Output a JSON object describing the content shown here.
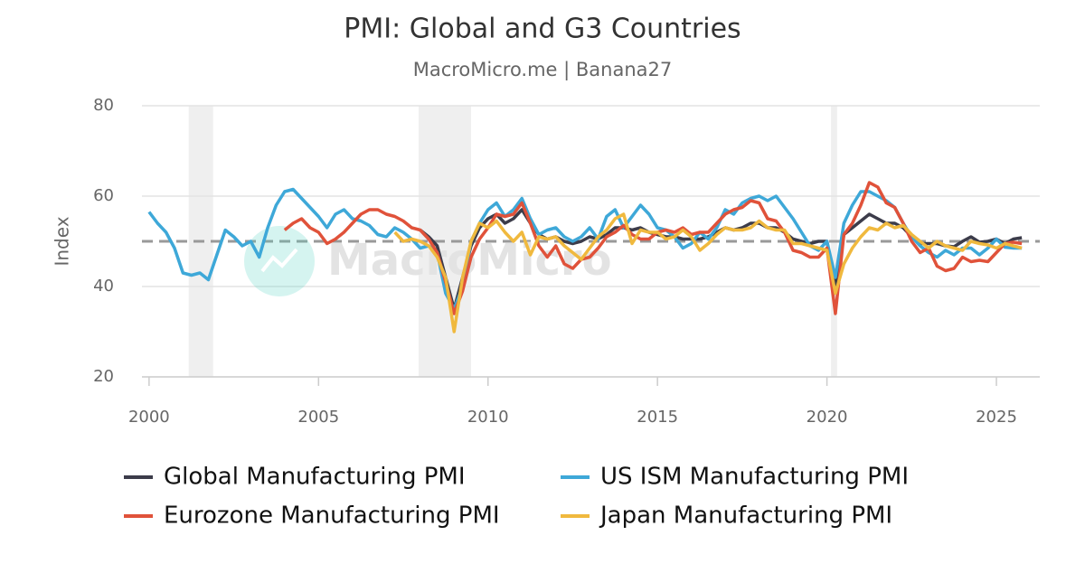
{
  "chart_data": {
    "type": "line",
    "title": "PMI: Global and G3 Countries",
    "subtitle": "MacroMicro.me | Banana27",
    "y_label": "Index",
    "watermark": "MacroMicro",
    "xlim": [
      1999.79,
      2026.28
    ],
    "ylim": [
      20,
      80
    ],
    "xticks": [
      2000,
      2005,
      2010,
      2015,
      2020,
      2025
    ],
    "yticks": [
      20,
      40,
      60,
      80
    ],
    "grid": true,
    "reference_line": 50,
    "shaded_periods": [
      [
        2001.17,
        2001.89
      ],
      [
        2007.95,
        2009.5
      ],
      [
        2020.12,
        2020.3
      ]
    ],
    "legend": "bottom",
    "x": [
      2000,
      2000.25,
      2000.5,
      2000.75,
      2001,
      2001.25,
      2001.5,
      2001.75,
      2002,
      2002.25,
      2002.5,
      2002.75,
      2003,
      2003.25,
      2003.5,
      2003.75,
      2004,
      2004.25,
      2004.5,
      2004.75,
      2005,
      2005.25,
      2005.5,
      2005.75,
      2006,
      2006.25,
      2006.5,
      2006.75,
      2007,
      2007.25,
      2007.5,
      2007.75,
      2008,
      2008.25,
      2008.5,
      2008.75,
      2009,
      2009.25,
      2009.5,
      2009.75,
      2010,
      2010.25,
      2010.5,
      2010.75,
      2011,
      2011.25,
      2011.5,
      2011.75,
      2012,
      2012.25,
      2012.5,
      2012.75,
      2013,
      2013.25,
      2013.5,
      2013.75,
      2014,
      2014.25,
      2014.5,
      2014.75,
      2015,
      2015.25,
      2015.5,
      2015.75,
      2016,
      2016.25,
      2016.5,
      2016.75,
      2017,
      2017.25,
      2017.5,
      2017.75,
      2018,
      2018.25,
      2018.5,
      2018.75,
      2019,
      2019.25,
      2019.5,
      2019.75,
      2020,
      2020.25,
      2020.5,
      2020.75,
      2021,
      2021.25,
      2021.5,
      2021.75,
      2022,
      2022.25,
      2022.5,
      2022.75,
      2023,
      2023.25,
      2023.5,
      2023.75,
      2024,
      2024.25,
      2024.5,
      2024.75,
      2025,
      2025.25,
      2025.5,
      2025.75
    ],
    "series": [
      {
        "name": "Global Manufacturing PMI",
        "color": "#3c3c4a",
        "values": [
          null,
          null,
          null,
          null,
          null,
          null,
          null,
          null,
          null,
          null,
          null,
          null,
          null,
          null,
          null,
          null,
          null,
          null,
          null,
          null,
          null,
          null,
          null,
          null,
          null,
          null,
          null,
          null,
          null,
          null,
          null,
          null,
          52.5,
          51,
          49,
          42,
          35,
          42,
          49,
          53,
          55,
          56,
          54,
          55,
          57,
          54,
          51.5,
          50.5,
          51,
          50,
          49.5,
          50,
          51,
          50.5,
          51.5,
          53,
          53,
          52.5,
          53,
          52,
          51.5,
          51,
          51,
          50.5,
          50.5,
          50.5,
          51,
          52,
          53,
          52.5,
          53,
          54,
          54,
          53,
          53,
          52,
          50.5,
          50,
          49.5,
          50,
          50,
          40,
          51.5,
          53,
          54.5,
          56,
          55,
          54,
          54,
          53,
          51,
          49.5,
          49.5,
          49.5,
          49,
          48.8,
          50,
          51,
          49.8,
          50,
          50.5,
          49.5,
          50.5,
          50.8
        ]
      },
      {
        "name": "US ISM Manufacturing PMI",
        "color": "#3ea8d8",
        "values": [
          56.5,
          54,
          52,
          48.5,
          43,
          42.5,
          43,
          41.5,
          47,
          52.5,
          51,
          49,
          50,
          46.5,
          53,
          58,
          61,
          61.5,
          59.5,
          57.5,
          55.5,
          53,
          56,
          57,
          55,
          54.5,
          53.5,
          51.5,
          51,
          53,
          52,
          50.5,
          48.5,
          49,
          47.5,
          38.5,
          35,
          40,
          50,
          54,
          57,
          58.5,
          55.5,
          57,
          59.5,
          55,
          51.5,
          52.5,
          53,
          51,
          50,
          51,
          53,
          50.5,
          55.5,
          57,
          53,
          55.5,
          58,
          56,
          53,
          52.5,
          51,
          48.5,
          49.5,
          52,
          50.5,
          53,
          57,
          56,
          58.5,
          59.5,
          60,
          59,
          60,
          57.5,
          55,
          52,
          49,
          48,
          50,
          42,
          54,
          58,
          61,
          61,
          60,
          59,
          57.5,
          54,
          51,
          49,
          47.5,
          46.5,
          48,
          47,
          48.5,
          48.5,
          47,
          48.5,
          50.5,
          48.7,
          48.5,
          48.5
        ]
      },
      {
        "name": "Eurozone Manufacturing PMI",
        "color": "#e0523a",
        "values": [
          null,
          null,
          null,
          null,
          null,
          null,
          null,
          null,
          null,
          null,
          null,
          null,
          null,
          null,
          null,
          null,
          52.5,
          54,
          55,
          53,
          52,
          49.5,
          50.5,
          52,
          54,
          56,
          57,
          57,
          56,
          55.5,
          54.5,
          53,
          52.5,
          50.5,
          47.5,
          41,
          34,
          39,
          46.5,
          50.5,
          53,
          56,
          55.5,
          56,
          58.5,
          54,
          49,
          46.5,
          49,
          45,
          44,
          46,
          46.5,
          48.5,
          51,
          52,
          53.5,
          51.5,
          50.5,
          50.5,
          52,
          52.5,
          52,
          53,
          51.5,
          52,
          52,
          54,
          56,
          57,
          57.5,
          59,
          58.5,
          55,
          54.5,
          52,
          48,
          47.5,
          46.5,
          46.5,
          48.5,
          34,
          51.5,
          54,
          58,
          63,
          62,
          58.5,
          57.5,
          54,
          50,
          47.5,
          48.5,
          44.5,
          43.5,
          44,
          46.5,
          45.5,
          45.8,
          45.5,
          47.5,
          49.5,
          49.8,
          49.5
        ]
      },
      {
        "name": "Japan Manufacturing PMI",
        "color": "#f0b93e",
        "values": [
          null,
          null,
          null,
          null,
          null,
          null,
          null,
          null,
          null,
          null,
          null,
          null,
          null,
          null,
          null,
          null,
          null,
          null,
          null,
          null,
          null,
          null,
          null,
          null,
          null,
          null,
          null,
          null,
          null,
          52,
          50,
          50.5,
          50,
          49,
          46.5,
          42,
          30,
          42,
          50,
          54,
          53,
          54.5,
          52,
          50,
          52,
          47,
          51,
          50.5,
          51,
          49,
          47.5,
          46,
          48.5,
          51,
          52.5,
          55,
          56,
          49.5,
          52.5,
          52,
          52,
          50.5,
          51,
          52.5,
          51,
          48,
          49.5,
          51.5,
          53,
          52.5,
          52.5,
          53,
          54.5,
          53,
          52.5,
          52.5,
          49.5,
          49.5,
          49,
          48.5,
          48,
          38.5,
          45,
          48.5,
          51,
          53,
          52.5,
          54,
          53,
          53.5,
          51.5,
          50,
          48.5,
          50,
          49,
          48.5,
          48,
          50,
          49.5,
          49.2,
          48.5,
          49.5,
          49,
          48.5
        ]
      }
    ]
  }
}
